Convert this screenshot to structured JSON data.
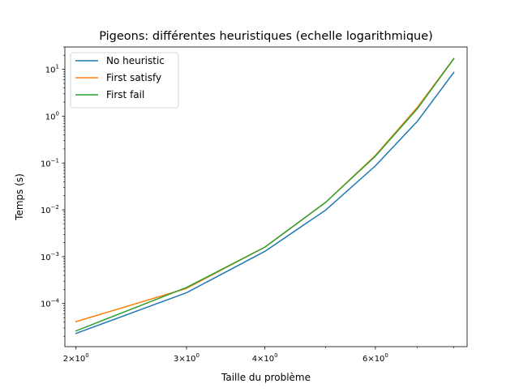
{
  "chart_data": {
    "type": "line",
    "title": "Pigeons: différentes heuristiques (echelle logarithmique)",
    "xlabel": "Taille du problème",
    "ylabel": "Temps (s)",
    "xscale": "log",
    "yscale": "log",
    "xlim": [
      1.92,
      8.4
    ],
    "ylim": [
      1.2e-05,
      30
    ],
    "x": [
      2,
      3,
      4,
      5,
      6,
      7,
      8
    ],
    "x_ticks": [
      {
        "value": 2,
        "base": "2×10",
        "exp": "0"
      },
      {
        "value": 3,
        "base": "3×10",
        "exp": "0"
      },
      {
        "value": 4,
        "base": "4×10",
        "exp": "0"
      },
      {
        "value": 6,
        "base": "6×10",
        "exp": "0"
      }
    ],
    "y_ticks": [
      {
        "value": 0.0001,
        "base": "10",
        "exp": "−4"
      },
      {
        "value": 0.001,
        "base": "10",
        "exp": "−3"
      },
      {
        "value": 0.01,
        "base": "10",
        "exp": "−2"
      },
      {
        "value": 0.1,
        "base": "10",
        "exp": "−1"
      },
      {
        "value": 1,
        "base": "10",
        "exp": "0"
      },
      {
        "value": 10,
        "base": "10",
        "exp": "1"
      }
    ],
    "series": [
      {
        "name": "No heuristic",
        "color": "#1f77b4",
        "values": [
          2.3e-05,
          0.00017,
          0.0013,
          0.0099,
          0.087,
          0.78,
          8.6
        ]
      },
      {
        "name": "First satisfy",
        "color": "#ff7f0e",
        "values": [
          4.1e-05,
          0.00021,
          0.0016,
          0.0145,
          0.145,
          1.55,
          17
        ]
      },
      {
        "name": "First fail",
        "color": "#2ca02c",
        "values": [
          2.6e-05,
          0.00022,
          0.0016,
          0.0145,
          0.14,
          1.45,
          16.8
        ]
      }
    ],
    "legend": "upper left",
    "grid": false
  }
}
